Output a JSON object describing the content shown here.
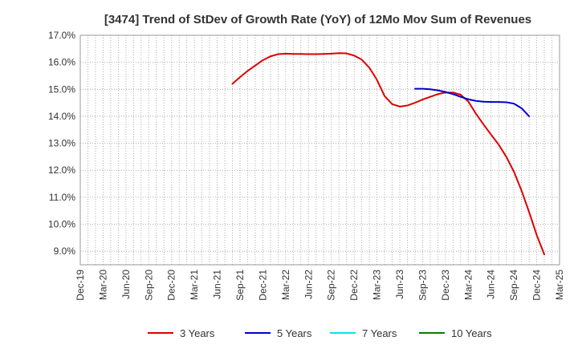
{
  "chart_data": {
    "type": "line",
    "title": "[3474]  Trend of StDev of Growth Rate (YoY) of 12Mo Mov Sum of Revenues",
    "xlabel": "",
    "ylabel": "",
    "ylim": [
      8.5,
      17.0
    ],
    "y_ticks": [
      9.0,
      10.0,
      11.0,
      12.0,
      13.0,
      14.0,
      15.0,
      16.0,
      17.0
    ],
    "y_tick_labels": [
      "9.0%",
      "10.0%",
      "11.0%",
      "12.0%",
      "13.0%",
      "14.0%",
      "15.0%",
      "16.0%",
      "17.0%"
    ],
    "x_tick_labels": [
      "Dec-19",
      "Mar-20",
      "Jun-20",
      "Sep-20",
      "Dec-20",
      "Mar-21",
      "Jun-21",
      "Sep-21",
      "Dec-21",
      "Mar-22",
      "Jun-22",
      "Sep-22",
      "Dec-22",
      "Mar-23",
      "Jun-23",
      "Sep-23",
      "Dec-23",
      "Mar-24",
      "Jun-24",
      "Sep-24",
      "Dec-24",
      "Mar-25"
    ],
    "x_start": "Dec-19",
    "months_total": 63,
    "grid": true,
    "legend_position": "bottom",
    "series": [
      {
        "name": "3 Years",
        "color": "#dd0000",
        "start_month": "Aug-21",
        "values": [
          15.2,
          15.45,
          15.68,
          15.88,
          16.08,
          16.22,
          16.3,
          16.32,
          16.31,
          16.31,
          16.3,
          16.3,
          16.31,
          16.32,
          16.34,
          16.33,
          16.25,
          16.1,
          15.8,
          15.35,
          14.75,
          14.45,
          14.36,
          14.4,
          14.5,
          14.62,
          14.72,
          14.82,
          14.88,
          14.88,
          14.8,
          14.55,
          14.1,
          13.7,
          13.32,
          12.95,
          12.5,
          11.95,
          11.25,
          10.45,
          9.6,
          8.88
        ]
      },
      {
        "name": "5 Years",
        "color": "#0000cc",
        "start_month": "Aug-23",
        "values": [
          15.02,
          15.02,
          15.0,
          14.96,
          14.9,
          14.82,
          14.72,
          14.63,
          14.57,
          14.54,
          14.53,
          14.53,
          14.52,
          14.47,
          14.3,
          14.0
        ]
      },
      {
        "name": "7 Years",
        "color": "#00e5ee",
        "start_month": "",
        "values": []
      },
      {
        "name": "10 Years",
        "color": "#008000",
        "start_month": "",
        "values": []
      }
    ]
  }
}
